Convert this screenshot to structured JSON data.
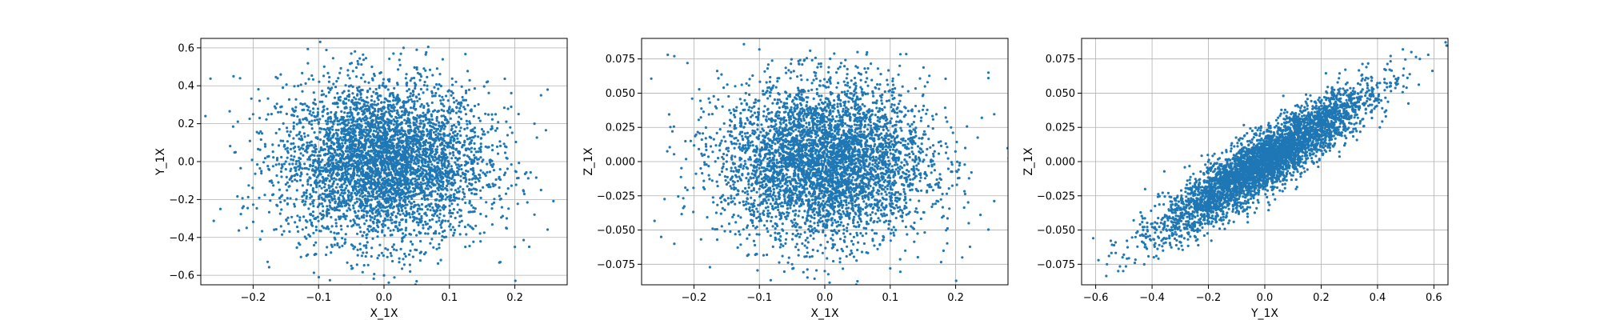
{
  "chart_data": [
    {
      "type": "scatter",
      "xlabel": "X_1X",
      "ylabel": "Y_1X",
      "xlim": [
        -0.28,
        0.28
      ],
      "ylim": [
        -0.65,
        0.65
      ],
      "xticks": [
        -0.2,
        -0.1,
        0.0,
        0.1,
        0.2
      ],
      "yticks": [
        -0.6,
        -0.4,
        -0.2,
        0.0,
        0.2,
        0.4,
        0.6
      ],
      "xtick_labels": [
        "−0.2",
        "−0.1",
        "0.0",
        "0.1",
        "0.2"
      ],
      "ytick_labels": [
        "−0.6",
        "−0.4",
        "−0.2",
        "0.0",
        "0.2",
        "0.4",
        "0.6"
      ],
      "grid": true,
      "color": "#1f77b4",
      "points": [
        [
          -0.23,
          0.45
        ],
        [
          -0.22,
          0.44
        ],
        [
          -0.2,
          0.25
        ],
        [
          -0.19,
          0.23
        ],
        [
          -0.25,
          -0.25
        ],
        [
          -0.21,
          -0.35
        ],
        [
          0.25,
          0.38
        ],
        [
          0.24,
          0.35
        ],
        [
          0.23,
          0.2
        ],
        [
          0.24,
          -0.15
        ],
        [
          0.23,
          -0.28
        ],
        [
          0.2,
          -0.45
        ],
        [
          0.03,
          0.6
        ],
        [
          0.05,
          0.59
        ],
        [
          -0.05,
          0.57
        ],
        [
          0.0,
          -0.6
        ],
        [
          0.04,
          -0.58
        ],
        [
          -0.05,
          -0.55
        ],
        [
          0.0,
          0.0
        ],
        [
          0.05,
          0.1
        ],
        [
          -0.05,
          -0.1
        ],
        [
          0.1,
          -0.2
        ],
        [
          -0.1,
          0.2
        ],
        [
          0.15,
          0.0
        ],
        [
          -0.15,
          0.0
        ]
      ]
    },
    {
      "type": "scatter",
      "xlabel": "X_1X",
      "ylabel": "Z_1X",
      "xlim": [
        -0.28,
        0.28
      ],
      "ylim": [
        -0.09,
        0.09
      ],
      "xticks": [
        -0.2,
        -0.1,
        0.0,
        0.1,
        0.2
      ],
      "yticks": [
        -0.075,
        -0.05,
        -0.025,
        0.0,
        0.025,
        0.05,
        0.075
      ],
      "xtick_labels": [
        "−0.2",
        "−0.1",
        "0.0",
        "0.1",
        "0.2"
      ],
      "ytick_labels": [
        "−0.075",
        "−0.050",
        "−0.025",
        "0.000",
        "0.025",
        "0.050",
        "0.075"
      ],
      "grid": true,
      "color": "#1f77b4",
      "points": [
        [
          -0.24,
          0.078
        ],
        [
          -0.23,
          0.077
        ],
        [
          -0.21,
          0.072
        ],
        [
          -0.25,
          -0.055
        ],
        [
          -0.23,
          -0.06
        ],
        [
          0.25,
          0.065
        ],
        [
          0.25,
          0.061
        ],
        [
          0.24,
          0.032
        ],
        [
          0.22,
          -0.045
        ],
        [
          0.21,
          -0.07
        ],
        [
          -0.1,
          0.082
        ],
        [
          0.05,
          0.08
        ],
        [
          0.0,
          -0.08
        ],
        [
          0.1,
          -0.078
        ],
        [
          -0.05,
          -0.075
        ],
        [
          0.0,
          0.0
        ],
        [
          0.1,
          0.02
        ],
        [
          -0.1,
          -0.02
        ],
        [
          0.15,
          0.0
        ],
        [
          -0.15,
          0.0
        ]
      ]
    },
    {
      "type": "scatter",
      "xlabel": "Y_1X",
      "ylabel": "Z_1X",
      "xlim": [
        -0.65,
        0.65
      ],
      "ylim": [
        -0.09,
        0.09
      ],
      "xticks": [
        -0.6,
        -0.4,
        -0.2,
        0.0,
        0.2,
        0.4,
        0.6
      ],
      "yticks": [
        -0.075,
        -0.05,
        -0.025,
        0.0,
        0.025,
        0.05,
        0.075
      ],
      "xtick_labels": [
        "−0.6",
        "−0.4",
        "−0.2",
        "0.0",
        "0.2",
        "0.4",
        "0.6"
      ],
      "ytick_labels": [
        "−0.075",
        "−0.050",
        "−0.025",
        "0.000",
        "0.025",
        "0.050",
        "0.075"
      ],
      "grid": true,
      "color": "#1f77b4",
      "trend": {
        "slope": 0.13,
        "spread_y": 0.011,
        "x_std": 0.18
      },
      "points": [
        [
          -0.59,
          -0.072
        ],
        [
          -0.56,
          -0.075
        ],
        [
          -0.52,
          -0.08
        ],
        [
          -0.5,
          -0.068
        ],
        [
          0.58,
          0.078
        ],
        [
          0.52,
          0.08
        ],
        [
          0.49,
          0.082
        ],
        [
          0.55,
          0.075
        ],
        [
          0.0,
          0.0
        ],
        [
          0.2,
          0.025
        ],
        [
          -0.2,
          -0.025
        ],
        [
          0.3,
          0.04
        ],
        [
          -0.3,
          -0.04
        ]
      ]
    }
  ]
}
